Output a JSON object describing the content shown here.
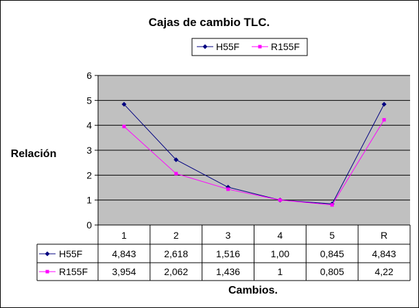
{
  "chart_data": {
    "type": "line",
    "title": "Cajas de cambio TLC.",
    "xlabel": "Cambios.",
    "ylabel": "Relación",
    "categories": [
      "1",
      "2",
      "3",
      "4",
      "5",
      "R"
    ],
    "ylim": [
      0,
      6
    ],
    "yticks": [
      "0",
      "1",
      "2",
      "3",
      "4",
      "5",
      "6"
    ],
    "grid": true,
    "legend_position": "top",
    "plot_background": "#c0c0c0",
    "series": [
      {
        "name": "H55F",
        "color": "#000080",
        "marker": "diamond",
        "values": [
          4.843,
          2.618,
          1.516,
          1.0,
          0.845,
          4.843
        ],
        "labels": [
          "4,843",
          "2,618",
          "1,516",
          "1,00",
          "0,845",
          "4,843"
        ]
      },
      {
        "name": "R155F",
        "color": "#ff00ff",
        "marker": "square",
        "values": [
          3.954,
          2.062,
          1.436,
          1,
          0.805,
          4.22
        ],
        "labels": [
          "3,954",
          "2,062",
          "1,436",
          "1",
          "0,805",
          "4,22"
        ]
      }
    ]
  }
}
